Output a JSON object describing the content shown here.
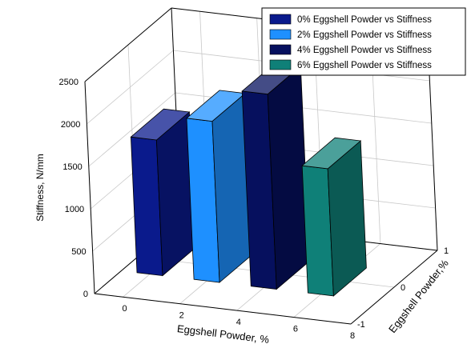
{
  "chart_data": {
    "type": "bar",
    "title": "",
    "xlabel": "Eggshell Powder, %",
    "ylabel": "Stiffness, N/mm",
    "zlabel": "Eggshell Powder,%",
    "x_ticks": [
      "0",
      "2",
      "4",
      "6",
      "8"
    ],
    "y_ticks": [
      "0",
      "500",
      "1000",
      "1500",
      "2000",
      "2500"
    ],
    "z_ticks": [
      "-1",
      "0",
      "1"
    ],
    "ylim": [
      0,
      2500
    ],
    "grid": true,
    "legend_position": "top-right",
    "series": [
      {
        "name": "0% Eggshell Powder vs Stiffness",
        "x": 0,
        "value": 1600,
        "color": "#0a1a8c"
      },
      {
        "name": "2% Eggshell Powder vs Stiffness",
        "x": 2,
        "value": 1900,
        "color": "#1e90ff"
      },
      {
        "name": "4% Eggshell Powder vs Stiffness",
        "x": 4,
        "value": 2300,
        "color": "#06105e"
      },
      {
        "name": "6% Eggshell Powder vs Stiffness",
        "x": 6,
        "value": 1500,
        "color": "#0f8078"
      }
    ]
  }
}
